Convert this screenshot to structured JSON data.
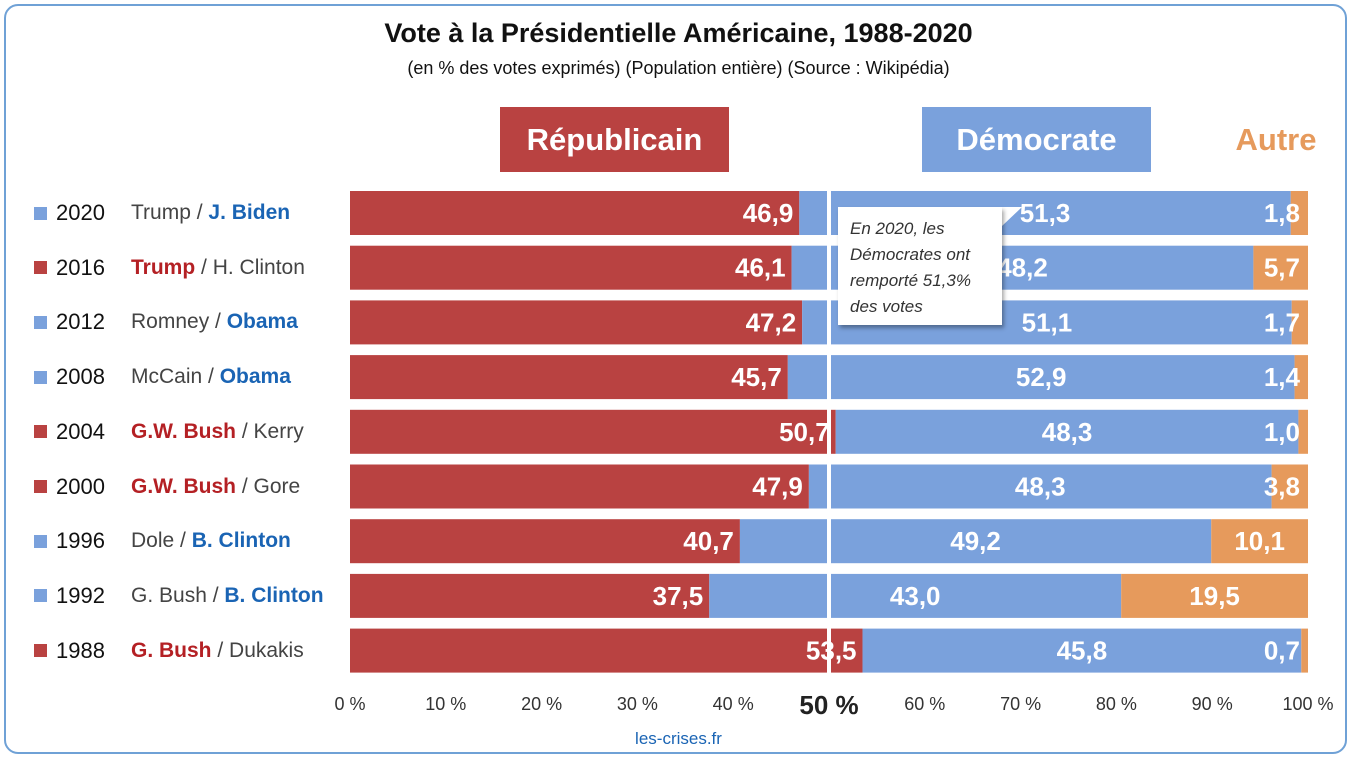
{
  "title": "Vote à la Présidentielle Américaine, 1988-2020",
  "subtitle": "(en % des votes exprimés) (Population entière) (Source : Wikipédia)",
  "headers": {
    "republican": "Républicain",
    "democrat": "Démocrate",
    "other": "Autre"
  },
  "colors": {
    "republican": "#b94241",
    "democrat": "#7aa1dc",
    "other": "#e69a5c",
    "winner_rep_text": "#b42024",
    "winner_dem_text": "#1a64b4",
    "frame": "#6fa1d6"
  },
  "callout": "En 2020, les Démocrates ont remporté 51,3% des votes",
  "source": "les-crises.fr",
  "chart_data": {
    "type": "bar",
    "orientation": "horizontal",
    "stacked": true,
    "normalized_to_100": true,
    "categories": [
      "2020",
      "2016",
      "2012",
      "2008",
      "2004",
      "2000",
      "1996",
      "1992",
      "1988"
    ],
    "rows": [
      {
        "year": "2020",
        "rep": "Trump",
        "dem": "J. Biden",
        "winner": "dem"
      },
      {
        "year": "2016",
        "rep": "Trump",
        "dem": "H. Clinton",
        "winner": "rep"
      },
      {
        "year": "2012",
        "rep": "Romney",
        "dem": "Obama",
        "winner": "dem"
      },
      {
        "year": "2008",
        "rep": "McCain",
        "dem": "Obama",
        "winner": "dem"
      },
      {
        "year": "2004",
        "rep": "G.W. Bush",
        "dem": "Kerry",
        "winner": "rep"
      },
      {
        "year": "2000",
        "rep": "G.W. Bush",
        "dem": "Gore",
        "winner": "rep"
      },
      {
        "year": "1996",
        "rep": "Dole",
        "dem": "B. Clinton",
        "winner": "dem"
      },
      {
        "year": "1992",
        "rep": "G. Bush",
        "dem": "B. Clinton",
        "winner": "dem"
      },
      {
        "year": "1988",
        "rep": "G. Bush",
        "dem": "Dukakis",
        "winner": "rep"
      }
    ],
    "series": [
      {
        "name": "Républicain",
        "values": [
          46.9,
          46.1,
          47.2,
          45.7,
          50.7,
          47.9,
          40.7,
          37.5,
          53.5
        ],
        "labels": [
          "46,9",
          "46,1",
          "47,2",
          "45,7",
          "50,7",
          "47,9",
          "40,7",
          "37,5",
          "53,5"
        ]
      },
      {
        "name": "Démocrate",
        "values": [
          51.3,
          48.2,
          51.1,
          52.9,
          48.3,
          48.3,
          49.2,
          43.0,
          45.8
        ],
        "labels": [
          "51,3",
          "48,2",
          "51,1",
          "52,9",
          "48,3",
          "48,3",
          "49,2",
          "43,0",
          "45,8"
        ]
      },
      {
        "name": "Autre",
        "values": [
          1.8,
          5.7,
          1.7,
          1.4,
          1.0,
          3.8,
          10.1,
          19.5,
          0.7
        ],
        "labels": [
          "1,8",
          "5,7",
          "1,7",
          "1,4",
          "1,0",
          "3,8",
          "10,1",
          "19,5",
          "0,7"
        ]
      }
    ],
    "xlim": [
      0,
      100
    ],
    "x_ticks": [
      0,
      10,
      20,
      30,
      40,
      50,
      60,
      70,
      80,
      90,
      100
    ],
    "x_tick_labels": [
      "0 %",
      "10 %",
      "20 %",
      "30 %",
      "40 %",
      "50 %",
      "60 %",
      "70 %",
      "80 %",
      "90 %",
      "100 %"
    ],
    "reference_line": 50,
    "grid": false
  }
}
